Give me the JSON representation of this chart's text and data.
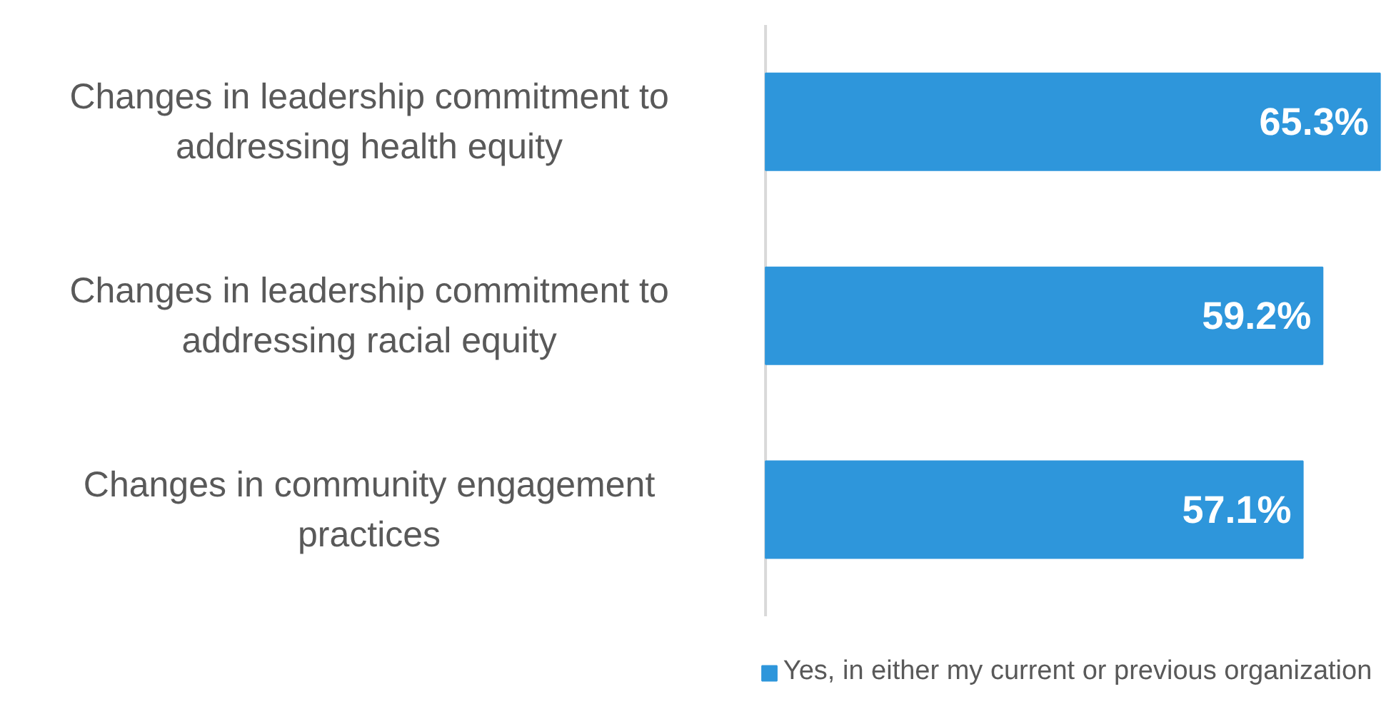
{
  "chart_data": {
    "type": "bar",
    "orientation": "horizontal",
    "categories": [
      "Changes in leadership commitment to addressing health equity",
      "Changes in leadership commitment to addressing racial equity",
      "Changes in community engagement practices"
    ],
    "series": [
      {
        "name": "Yes, in either my current or previous organization",
        "color": "#2e96db",
        "values": [
          65.3,
          59.2,
          57.1
        ],
        "value_labels": [
          "65.3%",
          "59.2%",
          "57.1%"
        ]
      }
    ],
    "legend": "bottom",
    "grid": false
  }
}
